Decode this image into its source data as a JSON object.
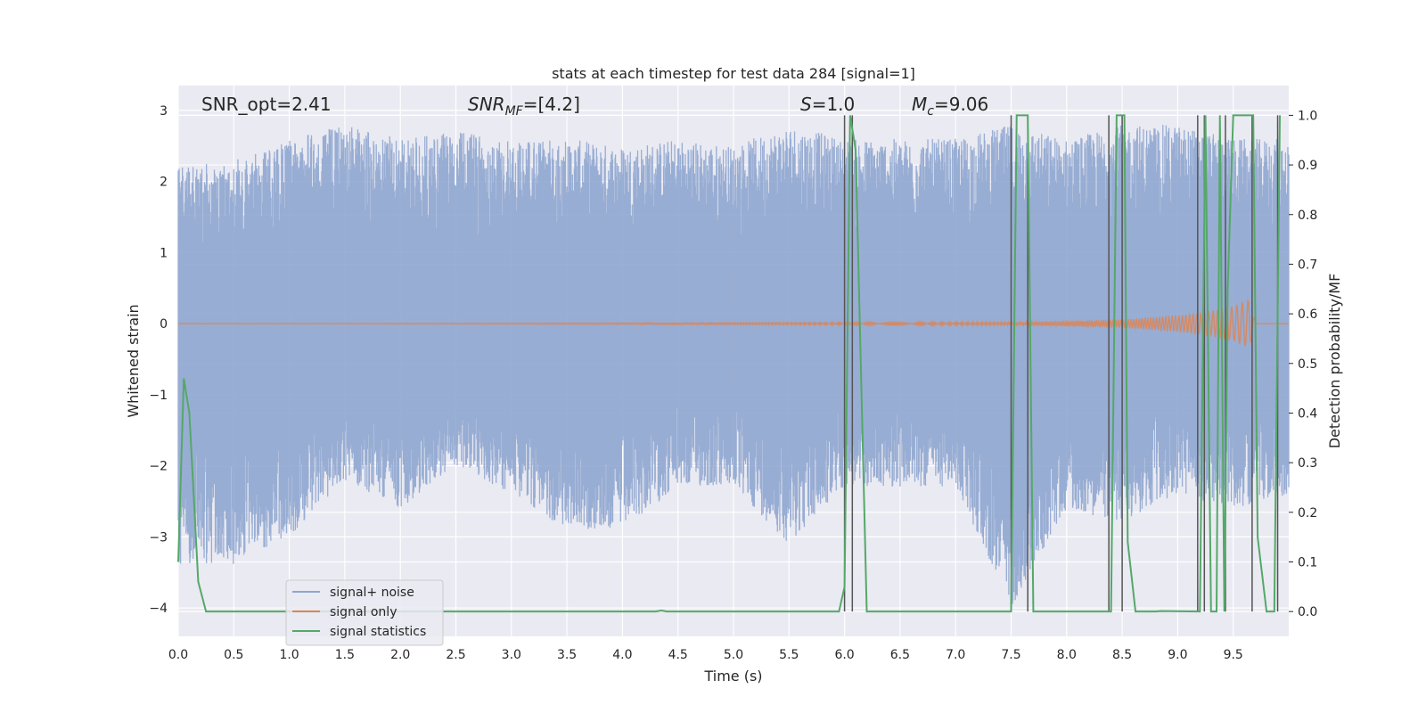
{
  "chart_data": {
    "type": "line",
    "title": "stats at each timestep for test data 284 [signal=1]",
    "xlabel": "Time (s)",
    "ylabel": "Whitened strain",
    "ylabel_right": "Detection probability/MF",
    "xlim": [
      0.0,
      10.0
    ],
    "ylim": [
      -4.4,
      3.35
    ],
    "ylim_right": [
      -0.05,
      1.06
    ],
    "x_ticks": [
      "0.0",
      "0.5",
      "1.0",
      "1.5",
      "2.0",
      "2.5",
      "3.0",
      "3.5",
      "4.0",
      "4.5",
      "5.0",
      "5.5",
      "6.0",
      "6.5",
      "7.0",
      "7.5",
      "8.0",
      "8.5",
      "9.0",
      "9.5"
    ],
    "y_ticks": [
      "3",
      "2",
      "1",
      "0",
      "−1",
      "−2",
      "−3",
      "−4"
    ],
    "y_ticks_right": [
      "1.0",
      "0.9",
      "0.8",
      "0.7",
      "0.6",
      "0.5",
      "0.4",
      "0.3",
      "0.2",
      "0.1",
      "0.0"
    ],
    "grid": true,
    "legend_position": "lower-left",
    "annotations": {
      "snr_opt": "SNR_opt=2.41",
      "snr_mf_sym": "SNR",
      "snr_mf_sub": "MF",
      "snr_mf_val": "=[4.2]",
      "s_sym": "S",
      "s_val": "=1.0",
      "mc_sym": "M",
      "mc_sub": "c",
      "mc_val": "=9.06"
    },
    "series": [
      {
        "name": "signal+ noise",
        "color": "#8fa6cf",
        "noise_envelope": [
          {
            "x": 0.0,
            "ymin": -3.4,
            "ymax": 2.2
          },
          {
            "x": 0.5,
            "ymin": -3.4,
            "ymax": 2.3
          },
          {
            "x": 1.0,
            "ymin": -3.0,
            "ymax": 2.6
          },
          {
            "x": 1.5,
            "ymin": -2.2,
            "ymax": 2.8
          },
          {
            "x": 2.0,
            "ymin": -2.6,
            "ymax": 2.6
          },
          {
            "x": 2.5,
            "ymin": -2.0,
            "ymax": 2.7
          },
          {
            "x": 3.0,
            "ymin": -2.4,
            "ymax": 2.6
          },
          {
            "x": 3.5,
            "ymin": -2.9,
            "ymax": 2.6
          },
          {
            "x": 4.0,
            "ymin": -2.9,
            "ymax": 2.5
          },
          {
            "x": 4.5,
            "ymin": -2.3,
            "ymax": 2.6
          },
          {
            "x": 5.0,
            "ymin": -2.3,
            "ymax": 2.5
          },
          {
            "x": 5.5,
            "ymin": -3.1,
            "ymax": 2.8
          },
          {
            "x": 6.0,
            "ymin": -2.3,
            "ymax": 2.6
          },
          {
            "x": 6.5,
            "ymin": -2.3,
            "ymax": 2.6
          },
          {
            "x": 7.0,
            "ymin": -2.3,
            "ymax": 2.6
          },
          {
            "x": 7.5,
            "ymin": -4.0,
            "ymax": 2.8
          },
          {
            "x": 8.0,
            "ymin": -2.6,
            "ymax": 2.6
          },
          {
            "x": 8.5,
            "ymin": -2.8,
            "ymax": 2.8
          },
          {
            "x": 9.0,
            "ymin": -2.4,
            "ymax": 2.8
          },
          {
            "x": 9.5,
            "ymin": -2.6,
            "ymax": 2.6
          },
          {
            "x": 10.0,
            "ymin": -2.4,
            "ymax": 2.6
          }
        ]
      },
      {
        "name": "signal only",
        "color": "#dd8452",
        "envelope": [
          {
            "x": 0.0,
            "amp": 0.0
          },
          {
            "x": 7.5,
            "amp": 0.02
          },
          {
            "x": 8.5,
            "amp": 0.06
          },
          {
            "x": 9.0,
            "amp": 0.12
          },
          {
            "x": 9.3,
            "amp": 0.18
          },
          {
            "x": 9.5,
            "amp": 0.25
          },
          {
            "x": 9.65,
            "amp": 0.35
          },
          {
            "x": 9.7,
            "amp": 0.0
          },
          {
            "x": 10.0,
            "amp": 0.0
          }
        ]
      },
      {
        "name": "signal statistics",
        "color": "#55a868",
        "axis": "right",
        "points": [
          [
            0.0,
            0.1
          ],
          [
            0.05,
            0.47
          ],
          [
            0.1,
            0.4
          ],
          [
            0.18,
            0.06
          ],
          [
            0.25,
            0.0
          ],
          [
            4.3,
            0.0
          ],
          [
            4.35,
            0.002
          ],
          [
            4.4,
            0.0
          ],
          [
            5.95,
            0.0
          ],
          [
            6.0,
            0.05
          ],
          [
            6.05,
            1.0
          ],
          [
            6.1,
            0.93
          ],
          [
            6.2,
            0.0
          ],
          [
            7.5,
            0.0
          ],
          [
            7.55,
            1.0
          ],
          [
            7.65,
            1.0
          ],
          [
            7.7,
            0.0
          ],
          [
            8.4,
            0.0
          ],
          [
            8.45,
            1.0
          ],
          [
            8.52,
            1.0
          ],
          [
            8.55,
            0.14
          ],
          [
            8.62,
            0.0
          ],
          [
            8.8,
            0.0
          ],
          [
            8.85,
            0.001
          ],
          [
            9.2,
            0.0
          ],
          [
            9.25,
            1.0
          ],
          [
            9.3,
            0.0
          ],
          [
            9.35,
            0.0
          ],
          [
            9.38,
            1.0
          ],
          [
            9.42,
            0.0
          ],
          [
            9.45,
            0.65
          ],
          [
            9.5,
            1.0
          ],
          [
            9.68,
            1.0
          ],
          [
            9.72,
            0.15
          ],
          [
            9.8,
            0.0
          ],
          [
            9.87,
            0.0
          ],
          [
            9.92,
            1.0
          ]
        ]
      }
    ],
    "vertical_lines": {
      "color": "#555555",
      "x": [
        6.0,
        6.07,
        7.5,
        7.65,
        8.38,
        8.5,
        9.18,
        9.24,
        9.43,
        9.67,
        9.9
      ]
    }
  }
}
